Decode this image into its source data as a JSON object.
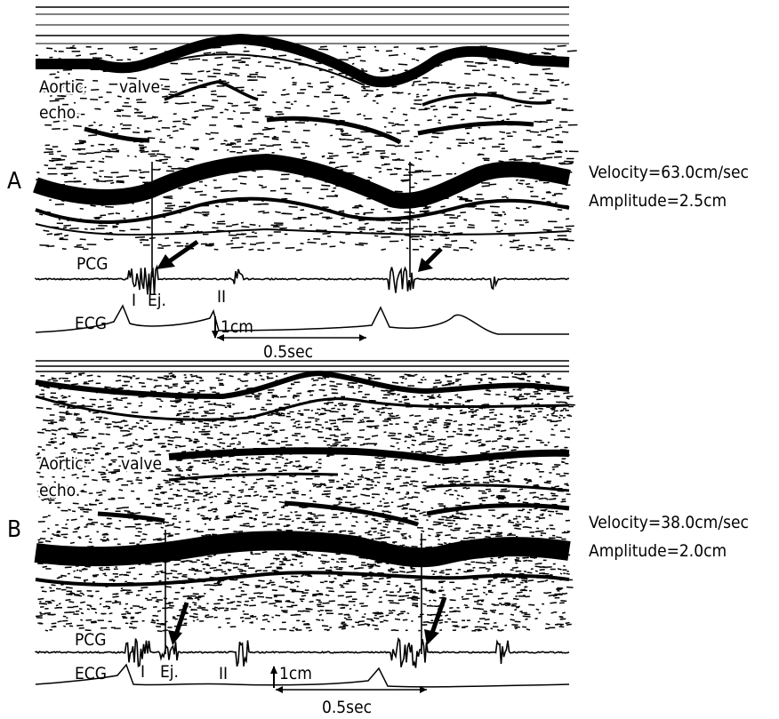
{
  "panels": [
    {
      "letter": "A",
      "valve_label_1": "Aortic",
      "valve_label_2": "valve",
      "valve_label_3": "echo.",
      "pcg_label": "PCG",
      "ecg_label": "ECG",
      "marker_s1": "I",
      "marker_ej": "Ej.",
      "marker_s2": "II",
      "scale_amplitude": "1cm",
      "scale_time": "0.5sec",
      "velocity": "Velocity=63.0cm/sec",
      "amplitude": "Amplitude=2.5cm"
    },
    {
      "letter": "B",
      "valve_label_1": "Aortic",
      "valve_label_2": "valve",
      "valve_label_3": "echo.",
      "pcg_label": "PCG",
      "ecg_label": "ECG",
      "marker_s1": "I",
      "marker_ej": "Ej.",
      "marker_s2": "II",
      "scale_amplitude": "1cm",
      "scale_time": "0.5sec",
      "velocity": "Velocity=38.0cm/sec",
      "amplitude": "Amplitude=2.0cm"
    }
  ]
}
